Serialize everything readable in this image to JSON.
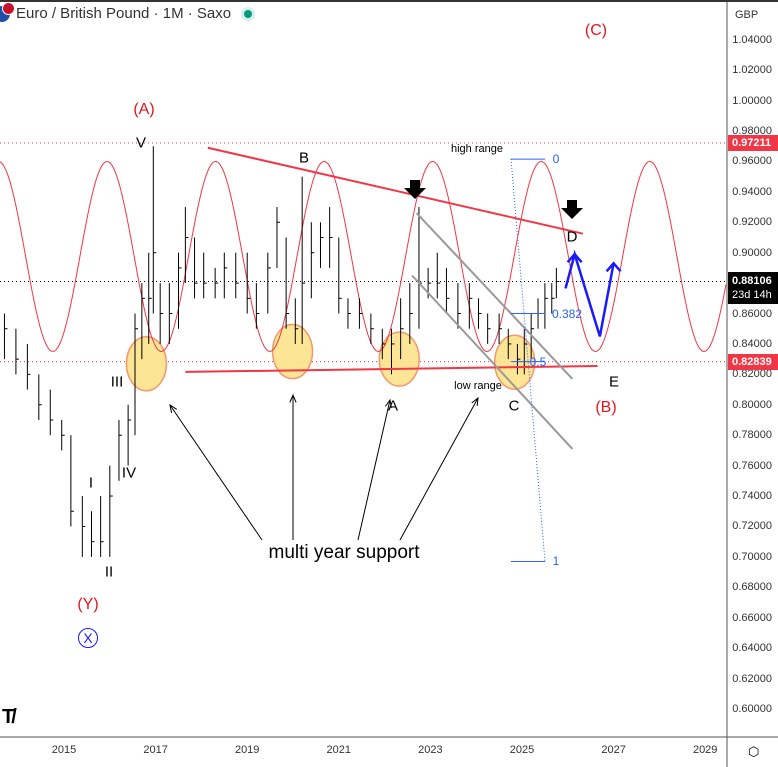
{
  "header": {
    "symbol_title": "Euro / British Pound · 1M · Saxo",
    "market_status_color": "#089981"
  },
  "price_axis": {
    "currency": "GBP",
    "ticks": [
      "1.04000",
      "1.02000",
      "1.00000",
      "0.98000",
      "0.96000",
      "0.94000",
      "0.92000",
      "0.90000",
      "0.86000",
      "0.84000",
      "0.82000",
      "0.80000",
      "0.78000",
      "0.76000",
      "0.74000",
      "0.72000",
      "0.70000",
      "0.68000",
      "0.66000",
      "0.64000",
      "0.62000",
      "0.60000"
    ],
    "last_price": "0.88106",
    "countdown": "23d 14h",
    "high_tag": "0.97211",
    "low_tag": "0.82839",
    "tag_red": "#f23645"
  },
  "time_axis": {
    "ticks": [
      "2015",
      "2017",
      "2019",
      "2021",
      "2023",
      "2025",
      "2027",
      "2029"
    ],
    "settings_icon": "gear-hex-icon"
  },
  "logo": "TV",
  "chart_data": {
    "type": "ohlc",
    "ylim": [
      0.58,
      1.055
    ],
    "xlim": [
      2013.6,
      2030.3
    ],
    "bars": [
      [
        2013.7,
        0.86,
        0.83,
        0.85
      ],
      [
        2013.95,
        0.85,
        0.82,
        0.83
      ],
      [
        2014.2,
        0.84,
        0.81,
        0.82
      ],
      [
        2014.45,
        0.82,
        0.79,
        0.8
      ],
      [
        2014.7,
        0.81,
        0.78,
        0.79
      ],
      [
        2014.95,
        0.79,
        0.77,
        0.78
      ],
      [
        2015.15,
        0.78,
        0.72,
        0.73
      ],
      [
        2015.4,
        0.74,
        0.7,
        0.72
      ],
      [
        2015.6,
        0.73,
        0.7,
        0.71
      ],
      [
        2015.8,
        0.74,
        0.7,
        0.71
      ],
      [
        2016.0,
        0.76,
        0.7,
        0.74
      ],
      [
        2016.2,
        0.79,
        0.75,
        0.78
      ],
      [
        2016.4,
        0.8,
        0.76,
        0.79
      ],
      [
        2016.55,
        0.86,
        0.78,
        0.85
      ],
      [
        2016.7,
        0.88,
        0.83,
        0.87
      ],
      [
        2016.85,
        0.9,
        0.84,
        0.87
      ],
      [
        2016.95,
        0.97,
        0.86,
        0.9
      ],
      [
        2017.1,
        0.88,
        0.84,
        0.86
      ],
      [
        2017.3,
        0.88,
        0.84,
        0.86
      ],
      [
        2017.5,
        0.9,
        0.85,
        0.89
      ],
      [
        2017.65,
        0.93,
        0.88,
        0.91
      ],
      [
        2017.85,
        0.91,
        0.87,
        0.88
      ],
      [
        2018.05,
        0.9,
        0.87,
        0.88
      ],
      [
        2018.3,
        0.89,
        0.87,
        0.88
      ],
      [
        2018.5,
        0.9,
        0.87,
        0.89
      ],
      [
        2018.75,
        0.9,
        0.87,
        0.88
      ],
      [
        2019.0,
        0.9,
        0.86,
        0.87
      ],
      [
        2019.2,
        0.88,
        0.85,
        0.86
      ],
      [
        2019.45,
        0.9,
        0.86,
        0.89
      ],
      [
        2019.65,
        0.93,
        0.89,
        0.92
      ],
      [
        2019.85,
        0.91,
        0.85,
        0.86
      ],
      [
        2020.05,
        0.87,
        0.84,
        0.85
      ],
      [
        2020.2,
        0.95,
        0.84,
        0.88
      ],
      [
        2020.4,
        0.92,
        0.87,
        0.9
      ],
      [
        2020.6,
        0.92,
        0.89,
        0.91
      ],
      [
        2020.8,
        0.93,
        0.89,
        0.91
      ],
      [
        2021.0,
        0.91,
        0.86,
        0.87
      ],
      [
        2021.2,
        0.87,
        0.85,
        0.86
      ],
      [
        2021.45,
        0.87,
        0.85,
        0.86
      ],
      [
        2021.7,
        0.86,
        0.84,
        0.85
      ],
      [
        2021.95,
        0.85,
        0.83,
        0.84
      ],
      [
        2022.15,
        0.85,
        0.82,
        0.84
      ],
      [
        2022.35,
        0.87,
        0.83,
        0.85
      ],
      [
        2022.55,
        0.88,
        0.84,
        0.86
      ],
      [
        2022.75,
        0.93,
        0.85,
        0.88
      ],
      [
        2022.95,
        0.89,
        0.87,
        0.88
      ],
      [
        2023.15,
        0.9,
        0.87,
        0.88
      ],
      [
        2023.35,
        0.89,
        0.86,
        0.87
      ],
      [
        2023.6,
        0.88,
        0.85,
        0.86
      ],
      [
        2023.85,
        0.88,
        0.85,
        0.87
      ],
      [
        2024.05,
        0.87,
        0.85,
        0.86
      ],
      [
        2024.25,
        0.86,
        0.84,
        0.85
      ],
      [
        2024.5,
        0.86,
        0.84,
        0.85
      ],
      [
        2024.7,
        0.85,
        0.83,
        0.84
      ],
      [
        2024.9,
        0.84,
        0.82,
        0.83
      ],
      [
        2025.05,
        0.85,
        0.82,
        0.84
      ],
      [
        2025.2,
        0.86,
        0.83,
        0.85
      ],
      [
        2025.35,
        0.87,
        0.85,
        0.86
      ],
      [
        2025.5,
        0.88,
        0.85,
        0.87
      ],
      [
        2025.65,
        0.88,
        0.86,
        0.87
      ],
      [
        2025.75,
        0.89,
        0.87,
        0.881
      ]
    ],
    "cycle": {
      "color": "#f23645",
      "high": 0.96,
      "low": 0.835,
      "period_years": 2.37,
      "peak_at": 2015.94
    },
    "resistance_line": {
      "from": [
        2018.14,
        0.969
      ],
      "to": [
        2026.33,
        0.9125
      ],
      "color": "#f23645"
    },
    "support_line": {
      "from": [
        2017.65,
        0.8216
      ],
      "to": [
        2026.65,
        0.8255
      ],
      "color": "#f23645"
    },
    "channel": [
      {
        "from": [
          2022.7,
          0.926
        ],
        "to": [
          2026.1,
          0.817
        ]
      },
      {
        "from": [
          2022.6,
          0.885
        ],
        "to": [
          2026.1,
          0.771
        ]
      }
    ],
    "projection": [
      [
        2025.95,
        0.8765
      ],
      [
        2026.15,
        0.899
      ],
      [
        2026.7,
        0.845
      ],
      [
        2027.0,
        0.893
      ]
    ],
    "support_zones": [
      [
        2016.8,
        0.827
      ],
      [
        2019.99,
        0.835
      ],
      [
        2022.32,
        0.83
      ],
      [
        2024.84,
        0.828
      ]
    ],
    "fib": {
      "levels": [
        "0",
        "0.382",
        "0.5",
        "1"
      ],
      "values": [
        0.9615,
        0.86,
        0.8284,
        0.697
      ],
      "color": "#2962ff"
    },
    "labels": {
      "A_paren": "(A)",
      "B_paren": "(B)",
      "C_paren": "(C)",
      "Y_paren": "(Y)",
      "X_circle": "X",
      "V": "V",
      "IV": "IV",
      "III": "III",
      "II": "II",
      "I": "I",
      "B": "B",
      "A": "A",
      "C": "C",
      "D": "D",
      "E": "E",
      "high_range": "high range",
      "low_range": "low range",
      "multi_year_support": "multi year support"
    }
  }
}
